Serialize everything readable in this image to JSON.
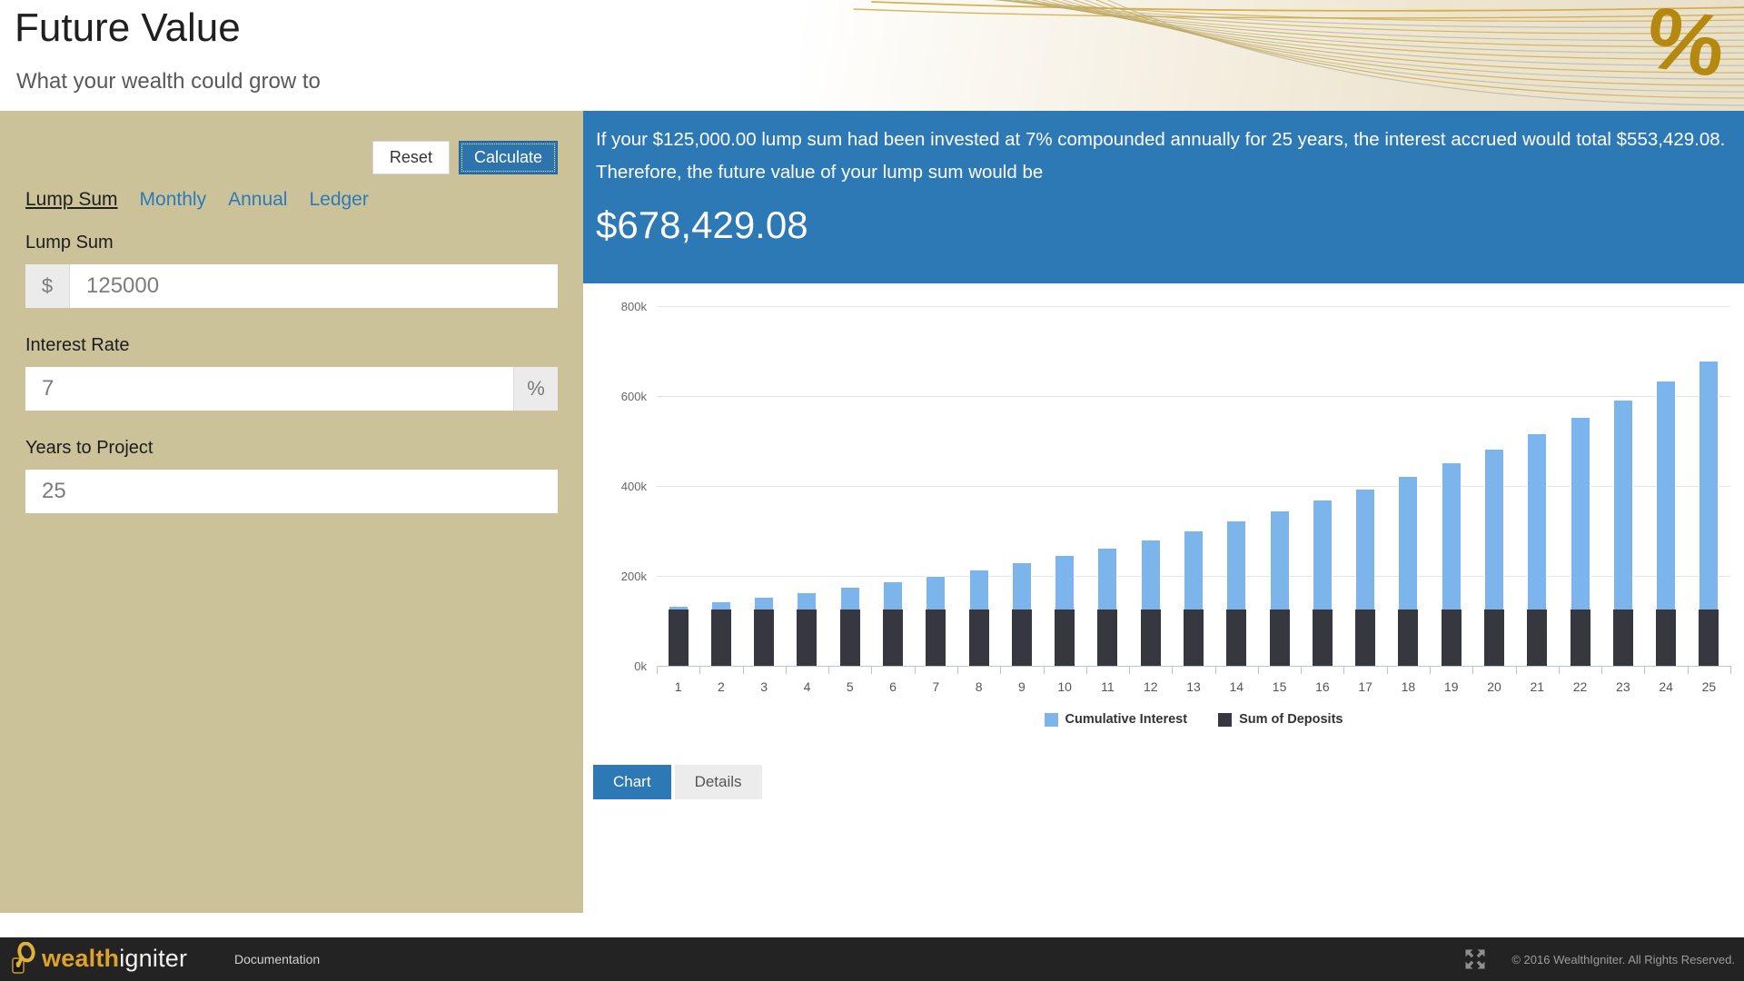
{
  "header": {
    "title": "Future Value",
    "subtitle": "What your wealth could grow to",
    "percent_symbol": "%"
  },
  "panel": {
    "reset_label": "Reset",
    "calculate_label": "Calculate",
    "tabs": [
      {
        "label": "Lump Sum",
        "active": true
      },
      {
        "label": "Monthly",
        "active": false
      },
      {
        "label": "Annual",
        "active": false
      },
      {
        "label": "Ledger",
        "active": false
      }
    ],
    "fields": {
      "lump_sum": {
        "label": "Lump Sum",
        "prefix": "$",
        "value": "125000"
      },
      "interest_rate": {
        "label": "Interest Rate",
        "suffix": "%",
        "value": "7"
      },
      "years": {
        "label": "Years to Project",
        "value": "25"
      }
    }
  },
  "result": {
    "summary": "If your $125,000.00 lump sum had been invested at 7% compounded annually for 25 years, the interest accrued would total $553,429.08. Therefore, the future value of your lump sum would be",
    "value": "$678,429.08"
  },
  "chart_data": {
    "type": "bar",
    "stacked": true,
    "title": "",
    "xlabel": "",
    "ylabel": "",
    "ylim": [
      0,
      800000
    ],
    "grid": true,
    "legend_position": "bottom",
    "categories": [
      1,
      2,
      3,
      4,
      5,
      6,
      7,
      8,
      9,
      10,
      11,
      12,
      13,
      14,
      15,
      16,
      17,
      18,
      19,
      20,
      21,
      22,
      23,
      24,
      25
    ],
    "yticks": [
      {
        "label": "800k",
        "value": 800000
      },
      {
        "label": "600k",
        "value": 600000
      },
      {
        "label": "400k",
        "value": 400000
      },
      {
        "label": "200k",
        "value": 200000
      },
      {
        "label": "0k",
        "value": 0
      }
    ],
    "series": [
      {
        "name": "Cumulative Interest",
        "color": "#7cb5ec",
        "values": [
          8750,
          18113,
          28130,
          38850,
          50319,
          62591,
          75723,
          89773,
          104807,
          120894,
          138106,
          156524,
          176231,
          197317,
          219879,
          244020,
          269852,
          297492,
          327066,
          358711,
          392570,
          428800,
          467566,
          509046,
          553429
        ]
      },
      {
        "name": "Sum of Deposits",
        "color": "#37373f",
        "values": [
          125000,
          125000,
          125000,
          125000,
          125000,
          125000,
          125000,
          125000,
          125000,
          125000,
          125000,
          125000,
          125000,
          125000,
          125000,
          125000,
          125000,
          125000,
          125000,
          125000,
          125000,
          125000,
          125000,
          125000,
          125000
        ]
      }
    ]
  },
  "view_toggle": {
    "chart_label": "Chart",
    "details_label": "Details"
  },
  "footer": {
    "brand_bold": "wealth",
    "brand_light": "igniter",
    "doc_link": "Documentation",
    "copyright": "© 2016 WealthIgniter. All Rights Reserved."
  },
  "colors": {
    "panel_tan": "#cbc29a",
    "banner_blue": "#2d79b5",
    "interest_blue": "#7cb5ec",
    "deposit_dark": "#37373f",
    "brand_gold": "#dea228",
    "footer_dark": "#232323"
  }
}
